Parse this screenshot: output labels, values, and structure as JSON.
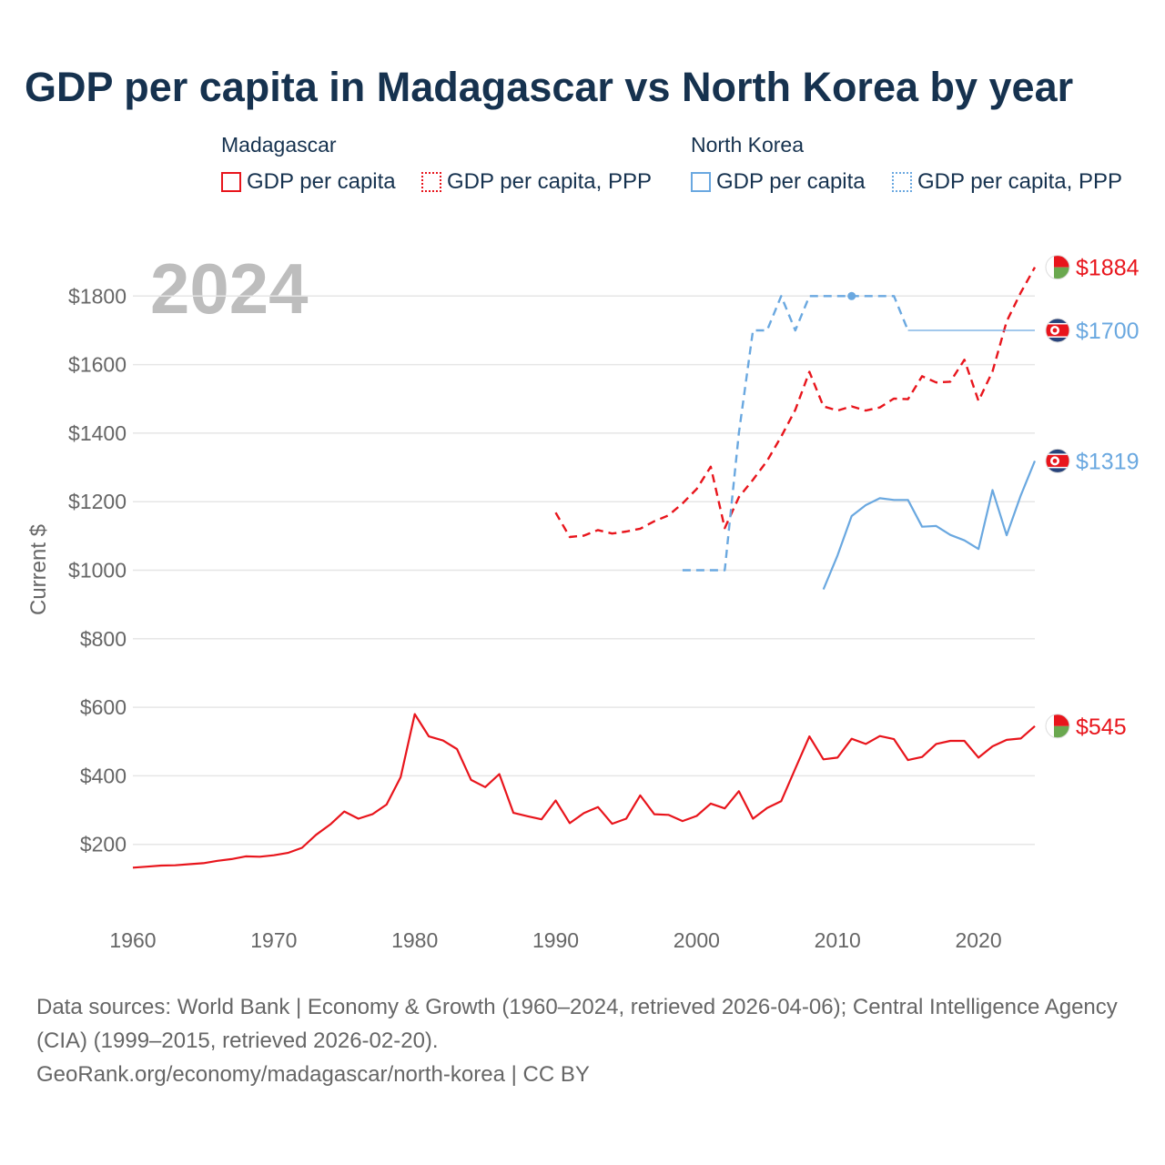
{
  "title": "GDP per capita in Madagascar vs North Korea by year",
  "legend": {
    "groups": [
      {
        "name": "Madagascar",
        "color": "#e8151c",
        "items": [
          {
            "label": "GDP per capita",
            "style": "solid"
          },
          {
            "label": "GDP per capita, PPP",
            "style": "dotted"
          }
        ]
      },
      {
        "name": "North Korea",
        "color": "#6aa8e0",
        "items": [
          {
            "label": "GDP per capita",
            "style": "solid"
          },
          {
            "label": "GDP per capita, PPP",
            "style": "dotted"
          }
        ]
      }
    ]
  },
  "year_label": "2024",
  "footer": {
    "sources": "Data sources: World Bank | Economy & Growth (1960–2024, retrieved 2026-04-06); Central Intelligence Agency (CIA) (1999–2015, retrieved 2026-02-20).",
    "attribution": "GeoRank.org/economy/madagascar/north-korea | CC BY"
  },
  "chart_data": {
    "type": "line",
    "title": "GDP per capita in Madagascar vs North Korea by year",
    "xlabel": "",
    "ylabel": "Current $",
    "xlim": [
      1960,
      2024
    ],
    "ylim": [
      0,
      1950
    ],
    "x_ticks": [
      1960,
      1970,
      1980,
      1990,
      2000,
      2010,
      2020
    ],
    "y_ticks": [
      200,
      400,
      600,
      800,
      1000,
      1200,
      1400,
      1600,
      1800
    ],
    "y_tick_labels": [
      "$200",
      "$400",
      "$600",
      "$800",
      "$1000",
      "$1200",
      "$1400",
      "$1600",
      "$1800"
    ],
    "grid": true,
    "series": [
      {
        "name": "Madagascar GDP per capita",
        "country": "Madagascar",
        "dash": "solid",
        "color": "#e8151c",
        "end_label": "$545",
        "x": [
          1960,
          1961,
          1962,
          1963,
          1964,
          1965,
          1966,
          1967,
          1968,
          1969,
          1970,
          1971,
          1972,
          1973,
          1974,
          1975,
          1976,
          1977,
          1978,
          1979,
          1980,
          1981,
          1982,
          1983,
          1984,
          1985,
          1986,
          1987,
          1988,
          1989,
          1990,
          1991,
          1992,
          1993,
          1994,
          1995,
          1996,
          1997,
          1998,
          1999,
          2000,
          2001,
          2002,
          2003,
          2004,
          2005,
          2006,
          2007,
          2008,
          2009,
          2010,
          2011,
          2012,
          2013,
          2014,
          2015,
          2016,
          2017,
          2018,
          2019,
          2020,
          2021,
          2022,
          2023,
          2024
        ],
        "y": [
          132,
          135,
          138,
          139,
          142,
          145,
          152,
          157,
          165,
          164,
          168,
          175,
          190,
          228,
          258,
          296,
          275,
          288,
          316,
          396,
          580,
          515,
          503,
          478,
          388,
          367,
          405,
          292,
          282,
          273,
          328,
          262,
          291,
          309,
          260,
          275,
          343,
          288,
          286,
          268,
          283,
          319,
          305,
          355,
          275,
          306,
          326,
          421,
          515,
          448,
          453,
          508,
          493,
          516,
          507,
          446,
          455,
          493,
          502,
          502,
          453,
          486,
          505,
          509,
          545
        ]
      },
      {
        "name": "Madagascar GDP per capita, PPP",
        "country": "Madagascar",
        "dash": "dashed",
        "color": "#e8151c",
        "end_label": "$1884",
        "x": [
          1990,
          1991,
          1992,
          1993,
          1994,
          1995,
          1996,
          1997,
          1998,
          1999,
          2000,
          2001,
          2002,
          2003,
          2004,
          2005,
          2006,
          2007,
          2008,
          2009,
          2010,
          2011,
          2012,
          2013,
          2014,
          2015,
          2016,
          2017,
          2018,
          2019,
          2020,
          2021,
          2022,
          2023,
          2024
        ],
        "y": [
          1168,
          1097,
          1101,
          1117,
          1107,
          1113,
          1121,
          1143,
          1160,
          1195,
          1237,
          1302,
          1123,
          1213,
          1264,
          1319,
          1390,
          1468,
          1579,
          1478,
          1466,
          1478,
          1466,
          1475,
          1501,
          1499,
          1566,
          1548,
          1550,
          1614,
          1494,
          1580,
          1726,
          1810,
          1884
        ]
      },
      {
        "name": "North Korea GDP per capita",
        "country": "North Korea",
        "dash": "solid",
        "color": "#6aa8e0",
        "end_label": "$1319",
        "x": [
          2009,
          2010,
          2011,
          2012,
          2013,
          2014,
          2015,
          2016,
          2017,
          2018,
          2019,
          2020,
          2021,
          2022,
          2023,
          2024
        ],
        "y": [
          944,
          1043,
          1158,
          1190,
          1210,
          1205,
          1205,
          1127,
          1129,
          1103,
          1087,
          1062,
          1234,
          1102,
          1218,
          1319
        ]
      },
      {
        "name": "North Korea GDP per capita, PPP",
        "country": "North Korea",
        "dash": "dashed",
        "color": "#6aa8e0",
        "x": [
          1999,
          2000,
          2001,
          2002,
          2003,
          2004,
          2005,
          2006,
          2007,
          2008,
          2009,
          2010,
          2011,
          2012,
          2013,
          2014,
          2015
        ],
        "y": [
          1000,
          1000,
          1000,
          1000,
          1400,
          1700,
          1700,
          1800,
          1700,
          1800,
          1800,
          1800,
          1800,
          1800,
          1800,
          1800,
          1700
        ],
        "highlight_x": 2011
      },
      {
        "name": "North Korea GDP per capita, PPP (carried forward)",
        "country": "North Korea",
        "dash": "thin-solid",
        "color": "#6aa8e0",
        "end_label": "$1700",
        "x": [
          2015,
          2024
        ],
        "y": [
          1700,
          1700
        ]
      }
    ]
  }
}
